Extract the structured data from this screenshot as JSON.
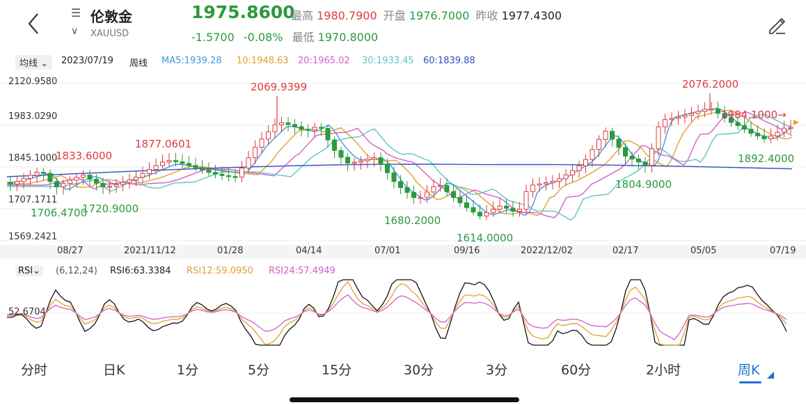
{
  "header": {
    "name": "伦敦金",
    "symbol": "XAUUSD",
    "price": "1975.8600",
    "high_label": "最高",
    "high_value": "1980.7900",
    "open_label": "开盘",
    "open_value": "1976.7000",
    "prev_close_label": "昨收",
    "prev_close_value": "1977.4300",
    "change": "-1.5700",
    "change_pct": "-0.08%",
    "low_label": "最低",
    "low_value": "1970.8000",
    "menu_glyph": "☰",
    "chevron_glyph": "∨"
  },
  "indicator_bar": {
    "selector": "均线",
    "date": "2023/07/19",
    "period": "周线",
    "ma5": "MA5:1939.28",
    "ma10": "10:1948.63",
    "ma20": "20:1965.02",
    "ma30": "30:1933.45",
    "ma60": "60:1839.88"
  },
  "chart_axis": {
    "y_top": "2120.9580",
    "y_2": "1983.0290",
    "y_3": "1845.1000",
    "y_4": "1707.1711",
    "y_bottom": "1569.2421"
  },
  "annotations": {
    "a1": "1877.0601",
    "a2": "1833.6000",
    "a3": "1706.4700",
    "a4": "1720.9000",
    "a5": "2069.9399",
    "a6": "1680.2000",
    "a7": "1614.0000",
    "a8": "2076.2000",
    "a9": "1984.1000→",
    "a10": "1892.4000",
    "a11": "1804.9000"
  },
  "dates": [
    "08/27",
    "2021/11/12",
    "01/28",
    "04/14",
    "07/01",
    "09/16",
    "2022/12/02",
    "02/17",
    "05/05",
    "07/19"
  ],
  "rsi": {
    "selector": "RSI",
    "params": "(6,12,24)",
    "rsi6": "RSI6:63.3384",
    "rsi12": "RSI12:59.0950",
    "rsi24": "RSI24:57.4949",
    "ylabel": "52.6704"
  },
  "tabs": [
    "分时",
    "日K",
    "1分",
    "5分",
    "15分",
    "30分",
    "3分",
    "60分",
    "2小时",
    "周K"
  ],
  "colors": {
    "up": "#e0393e",
    "down": "#2b9a3b",
    "ma5": "#3a9be0",
    "ma10": "#e0a030",
    "ma20": "#d060c8",
    "ma30": "#5ec6c0",
    "ma60": "#3050c0",
    "accent": "#1f6fd6"
  }
}
